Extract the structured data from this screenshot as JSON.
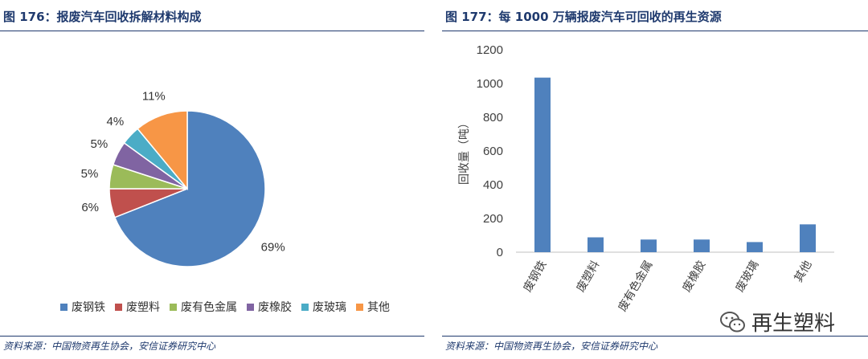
{
  "left": {
    "title": "图 176：报废汽车回收拆解材料构成",
    "source": "资料来源：中国物资再生协会，安信证券研究中心"
  },
  "right": {
    "title": "图 177：每 1000 万辆报废汽车可回收的再生资源",
    "source": "资料来源：中国物资再生协会，安信证券研究中心"
  },
  "watermark": {
    "text": "再生塑料",
    "icon": "wechat-icon"
  },
  "colors": {
    "blue": "#4f81bd",
    "red": "#c0504d",
    "green": "#9bbb59",
    "purple": "#8064a2",
    "teal": "#4bacc6",
    "orange": "#f79646",
    "title_blue": "#1f3a6e"
  },
  "chart_data": [
    {
      "type": "pie",
      "categories": [
        "废钢铁",
        "废塑料",
        "废有色金属",
        "废橡胶",
        "废玻璃",
        "其他"
      ],
      "values": [
        69,
        6,
        5,
        5,
        4,
        11
      ],
      "labels": [
        "69%",
        "6%",
        "5%",
        "5%",
        "4%",
        "11%"
      ],
      "colors": [
        "#4f81bd",
        "#c0504d",
        "#9bbb59",
        "#8064a2",
        "#4bacc6",
        "#f79646"
      ],
      "legend": "bottom"
    },
    {
      "type": "bar",
      "categories": [
        "废钢铁",
        "废塑料",
        "废有色金属",
        "废橡胶",
        "废玻璃",
        "其他"
      ],
      "values": [
        1035,
        88,
        75,
        75,
        60,
        165
      ],
      "ylabel": "回收量（吨）",
      "ylim": [
        0,
        1200
      ],
      "yticks": [
        0,
        200,
        400,
        600,
        800,
        1000,
        1200
      ],
      "grid": false,
      "color": "#4f81bd"
    }
  ]
}
